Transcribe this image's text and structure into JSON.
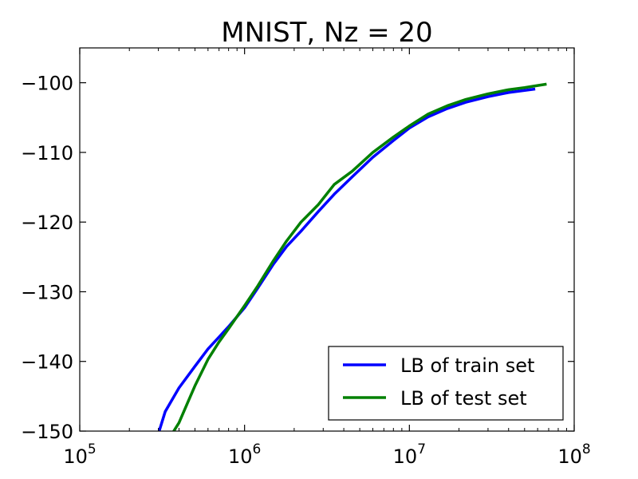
{
  "chart_data": {
    "type": "line",
    "title": "MNIST, Nz = 20",
    "xlabel": "",
    "ylabel": "",
    "xscale": "log",
    "xlim": [
      100000,
      100000000
    ],
    "ylim": [
      -150,
      -95
    ],
    "x_ticks": [
      {
        "value": 100000,
        "base": "10",
        "exp": "5"
      },
      {
        "value": 1000000,
        "base": "10",
        "exp": "6"
      },
      {
        "value": 10000000,
        "base": "10",
        "exp": "7"
      },
      {
        "value": 100000000,
        "base": "10",
        "exp": "8"
      }
    ],
    "y_ticks": [
      {
        "value": -100,
        "label": "−100"
      },
      {
        "value": -110,
        "label": "−110"
      },
      {
        "value": -120,
        "label": "−120"
      },
      {
        "value": -130,
        "label": "−130"
      },
      {
        "value": -140,
        "label": "−140"
      },
      {
        "value": -150,
        "label": "−150"
      }
    ],
    "grid": false,
    "legend_position": "lower-right",
    "series": [
      {
        "name": "LB of train set",
        "color": "#0000ff",
        "points": [
          [
            290000,
            -151.5
          ],
          [
            330000,
            -147.2
          ],
          [
            400000,
            -143.8
          ],
          [
            500000,
            -140.7
          ],
          [
            600000,
            -138.2
          ],
          [
            700000,
            -136.5
          ],
          [
            800000,
            -135.0
          ],
          [
            1000000,
            -132.3
          ],
          [
            1200000,
            -129.5
          ],
          [
            1500000,
            -126.0
          ],
          [
            1800000,
            -123.5
          ],
          [
            2200000,
            -121.3
          ],
          [
            2800000,
            -118.5
          ],
          [
            3500000,
            -116.0
          ],
          [
            4500000,
            -113.5
          ],
          [
            6000000,
            -110.7
          ],
          [
            8000000,
            -108.3
          ],
          [
            10000000,
            -106.5
          ],
          [
            13000000,
            -104.9
          ],
          [
            17000000,
            -103.7
          ],
          [
            22000000,
            -102.8
          ],
          [
            30000000,
            -102.0
          ],
          [
            40000000,
            -101.4
          ],
          [
            50000000,
            -101.1
          ],
          [
            58000000,
            -100.9
          ]
        ]
      },
      {
        "name": "LB of test set",
        "color": "#008000",
        "points": [
          [
            350000,
            -151.0
          ],
          [
            400000,
            -148.8
          ],
          [
            450000,
            -146.0
          ],
          [
            500000,
            -143.5
          ],
          [
            600000,
            -139.7
          ],
          [
            700000,
            -137.2
          ],
          [
            800000,
            -135.3
          ],
          [
            1000000,
            -132.0
          ],
          [
            1200000,
            -129.2
          ],
          [
            1500000,
            -125.5
          ],
          [
            1800000,
            -122.7
          ],
          [
            2200000,
            -120.0
          ],
          [
            2800000,
            -117.5
          ],
          [
            3500000,
            -114.6
          ],
          [
            4500000,
            -112.7
          ],
          [
            6000000,
            -110.0
          ],
          [
            8000000,
            -107.8
          ],
          [
            10000000,
            -106.2
          ],
          [
            13000000,
            -104.5
          ],
          [
            17000000,
            -103.3
          ],
          [
            22000000,
            -102.4
          ],
          [
            30000000,
            -101.6
          ],
          [
            40000000,
            -101.0
          ],
          [
            50000000,
            -100.7
          ],
          [
            60000000,
            -100.4
          ],
          [
            68000000,
            -100.2
          ]
        ]
      }
    ]
  }
}
